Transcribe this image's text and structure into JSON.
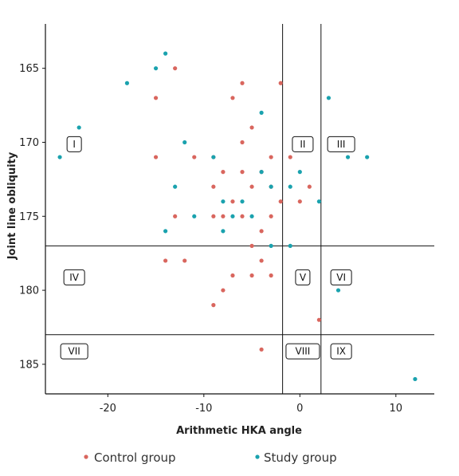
{
  "chart_data": {
    "type": "scatter",
    "title": "",
    "xlabel": "Arithmetic HKA angle",
    "ylabel": "Joint line obliquity",
    "xlim": [
      -26.5,
      14
    ],
    "ylim": [
      187,
      162
    ],
    "y_axis_reversed": true,
    "x_ticks": [
      -20,
      -10,
      0,
      10
    ],
    "y_ticks": [
      165,
      170,
      175,
      180,
      185
    ],
    "grid": false,
    "legend_position": "bottom",
    "divider_lines": {
      "vertical": [
        -1.8,
        2.2
      ],
      "horizontal": [
        177,
        183
      ]
    },
    "zones": [
      {
        "label": "I",
        "x": -23.5,
        "y": 170.1
      },
      {
        "label": "II",
        "x": 0.3,
        "y": 170.1
      },
      {
        "label": "III",
        "x": 4.3,
        "y": 170.1
      },
      {
        "label": "IV",
        "x": -23.5,
        "y": 179.1
      },
      {
        "label": "V",
        "x": 0.3,
        "y": 179.1
      },
      {
        "label": "VI",
        "x": 4.3,
        "y": 179.1
      },
      {
        "label": "VII",
        "x": -23.5,
        "y": 184.1
      },
      {
        "label": "VIII",
        "x": 0.3,
        "y": 184.1
      },
      {
        "label": "IX",
        "x": 4.3,
        "y": 184.1
      }
    ],
    "series": [
      {
        "name": "Control group",
        "color": "#d9665e",
        "points": [
          [
            -13,
            165
          ],
          [
            -15,
            167
          ],
          [
            -7,
            167
          ],
          [
            -6,
            166
          ],
          [
            -2,
            166
          ],
          [
            -5,
            169
          ],
          [
            -6,
            170
          ],
          [
            -15,
            171
          ],
          [
            -11,
            171
          ],
          [
            -9,
            171
          ],
          [
            -3,
            171
          ],
          [
            -1,
            171
          ],
          [
            -8,
            172
          ],
          [
            -6,
            172
          ],
          [
            -4,
            172
          ],
          [
            -9,
            173
          ],
          [
            -5,
            173
          ],
          [
            -3,
            173
          ],
          [
            1,
            173
          ],
          [
            -7,
            174
          ],
          [
            -2,
            174
          ],
          [
            0,
            174
          ],
          [
            -13,
            175
          ],
          [
            -9,
            175
          ],
          [
            -8,
            175
          ],
          [
            -6,
            175
          ],
          [
            -3,
            175
          ],
          [
            -4,
            176
          ],
          [
            -5,
            177
          ],
          [
            -14,
            178
          ],
          [
            -12,
            178
          ],
          [
            -4,
            178
          ],
          [
            -7,
            179
          ],
          [
            -5,
            179
          ],
          [
            -3,
            179
          ],
          [
            -8,
            180
          ],
          [
            -9,
            181
          ],
          [
            2,
            182
          ],
          [
            -4,
            184
          ]
        ]
      },
      {
        "name": "Study group",
        "color": "#1aa2ae",
        "points": [
          [
            -14,
            164
          ],
          [
            -15,
            165
          ],
          [
            -18,
            166
          ],
          [
            3,
            167
          ],
          [
            -4,
            168
          ],
          [
            -23,
            169
          ],
          [
            -12,
            170
          ],
          [
            -25,
            171
          ],
          [
            -9,
            171
          ],
          [
            5,
            171
          ],
          [
            7,
            171
          ],
          [
            -4,
            172
          ],
          [
            0,
            172
          ],
          [
            -13,
            173
          ],
          [
            -3,
            173
          ],
          [
            -1,
            173
          ],
          [
            -8,
            174
          ],
          [
            -6,
            174
          ],
          [
            2,
            174
          ],
          [
            -11,
            175
          ],
          [
            -7,
            175
          ],
          [
            -5,
            175
          ],
          [
            -14,
            176
          ],
          [
            -8,
            176
          ],
          [
            -3,
            177
          ],
          [
            -1,
            177
          ],
          [
            4,
            180
          ],
          [
            12,
            186
          ]
        ]
      }
    ]
  }
}
